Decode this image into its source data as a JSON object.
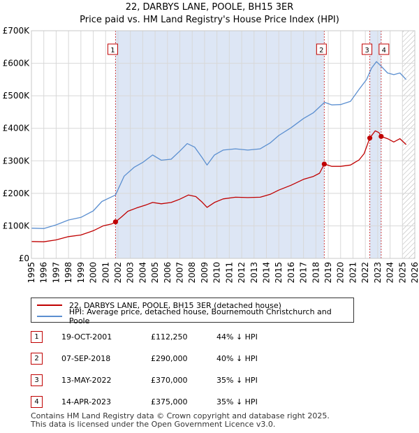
{
  "title_line1": "22, DARBYS LANE, POOLE, BH15 3ER",
  "title_line2": "Price paid vs. HM Land Registry's House Price Index (HPI)",
  "colors": {
    "property": "#c00000",
    "hpi": "#5b8fd0",
    "shade": "#dde6f5",
    "marker_line": "#d04040"
  },
  "chart_data": {
    "type": "line",
    "title": "22, DARBYS LANE, POOLE, BH15 3ER — Price paid vs. HM Land Registry's House Price Index (HPI)",
    "xlabel": "",
    "ylabel": "",
    "xlim": [
      1995,
      2026
    ],
    "ylim": [
      0,
      700000
    ],
    "x_ticks": [
      "1995",
      "1996",
      "1997",
      "1998",
      "1999",
      "2000",
      "2001",
      "2002",
      "2003",
      "2004",
      "2005",
      "2006",
      "2007",
      "2008",
      "2009",
      "2010",
      "2011",
      "2012",
      "2013",
      "2014",
      "2015",
      "2016",
      "2017",
      "2018",
      "2019",
      "2020",
      "2021",
      "2022",
      "2023",
      "2024",
      "2025",
      "2026"
    ],
    "y_ticks": [
      {
        "value": 0,
        "label": "£0"
      },
      {
        "value": 100000,
        "label": "£100K"
      },
      {
        "value": 200000,
        "label": "£200K"
      },
      {
        "value": 300000,
        "label": "£300K"
      },
      {
        "value": 400000,
        "label": "£400K"
      },
      {
        "value": 500000,
        "label": "£500K"
      },
      {
        "value": 600000,
        "label": "£600K"
      },
      {
        "value": 700000,
        "label": "£700K"
      }
    ],
    "grid": true,
    "series": [
      {
        "name": "22, DARBYS LANE, POOLE, BH15 3ER (detached house)",
        "points": [
          [
            1995.0,
            52000
          ],
          [
            1996.0,
            51000
          ],
          [
            1997.0,
            57000
          ],
          [
            1998.0,
            67000
          ],
          [
            1999.0,
            72000
          ],
          [
            2000.0,
            85000
          ],
          [
            2000.8,
            100000
          ],
          [
            2001.5,
            106000
          ],
          [
            2001.8,
            112250
          ],
          [
            2002.3,
            128000
          ],
          [
            2002.8,
            145000
          ],
          [
            2003.5,
            155000
          ],
          [
            2004.3,
            165000
          ],
          [
            2004.8,
            172000
          ],
          [
            2005.5,
            168000
          ],
          [
            2006.3,
            172000
          ],
          [
            2007.0,
            182000
          ],
          [
            2007.7,
            195000
          ],
          [
            2008.3,
            190000
          ],
          [
            2008.8,
            173000
          ],
          [
            2009.2,
            157000
          ],
          [
            2009.8,
            172000
          ],
          [
            2010.5,
            183000
          ],
          [
            2011.5,
            188000
          ],
          [
            2012.5,
            187000
          ],
          [
            2013.5,
            188000
          ],
          [
            2014.3,
            197000
          ],
          [
            2015.0,
            210000
          ],
          [
            2016.0,
            225000
          ],
          [
            2017.0,
            243000
          ],
          [
            2017.8,
            252000
          ],
          [
            2018.3,
            262000
          ],
          [
            2018.68,
            290000
          ],
          [
            2019.3,
            283000
          ],
          [
            2020.0,
            283000
          ],
          [
            2020.8,
            287000
          ],
          [
            2021.5,
            303000
          ],
          [
            2021.9,
            322000
          ],
          [
            2022.36,
            370000
          ],
          [
            2022.8,
            392000
          ],
          [
            2023.1,
            387000
          ],
          [
            2023.28,
            375000
          ],
          [
            2023.8,
            368000
          ],
          [
            2024.3,
            358000
          ],
          [
            2024.8,
            368000
          ],
          [
            2025.3,
            350000
          ]
        ]
      },
      {
        "name": "HPI: Average price, detached house, Bournemouth Christchurch and Poole",
        "points": [
          [
            1995.0,
            93000
          ],
          [
            1996.0,
            92000
          ],
          [
            1997.0,
            103000
          ],
          [
            1998.0,
            118000
          ],
          [
            1999.0,
            126000
          ],
          [
            2000.0,
            146000
          ],
          [
            2000.7,
            175000
          ],
          [
            2001.8,
            195000
          ],
          [
            2002.5,
            253000
          ],
          [
            2003.3,
            280000
          ],
          [
            2004.0,
            295000
          ],
          [
            2004.8,
            318000
          ],
          [
            2005.5,
            302000
          ],
          [
            2006.3,
            305000
          ],
          [
            2007.0,
            330000
          ],
          [
            2007.6,
            353000
          ],
          [
            2008.2,
            342000
          ],
          [
            2008.8,
            310000
          ],
          [
            2009.2,
            287000
          ],
          [
            2009.8,
            318000
          ],
          [
            2010.5,
            333000
          ],
          [
            2011.5,
            337000
          ],
          [
            2012.5,
            333000
          ],
          [
            2013.5,
            337000
          ],
          [
            2014.3,
            355000
          ],
          [
            2015.0,
            378000
          ],
          [
            2016.0,
            402000
          ],
          [
            2017.0,
            430000
          ],
          [
            2017.8,
            448000
          ],
          [
            2018.7,
            480000
          ],
          [
            2019.3,
            472000
          ],
          [
            2020.0,
            473000
          ],
          [
            2020.8,
            483000
          ],
          [
            2021.5,
            520000
          ],
          [
            2022.1,
            550000
          ],
          [
            2022.5,
            585000
          ],
          [
            2022.9,
            605000
          ],
          [
            2023.3,
            590000
          ],
          [
            2023.8,
            570000
          ],
          [
            2024.3,
            565000
          ],
          [
            2024.8,
            570000
          ],
          [
            2025.3,
            550000
          ]
        ]
      }
    ],
    "shaded_regions": [
      [
        2001.8,
        2018.68
      ],
      [
        2022.36,
        2023.28
      ]
    ],
    "hatched_region": [
      2025.0,
      2026.0
    ],
    "sales": [
      {
        "label": "1",
        "x": 2001.8,
        "price": 112250
      },
      {
        "label": "2",
        "x": 2018.68,
        "price": 290000
      },
      {
        "label": "3",
        "x": 2022.36,
        "price": 370000
      },
      {
        "label": "4",
        "x": 2023.28,
        "price": 375000
      }
    ]
  },
  "legend": {
    "property": "22, DARBYS LANE, POOLE, BH15 3ER (detached house)",
    "hpi": "HPI: Average price, detached house, Bournemouth Christchurch and Poole"
  },
  "transactions": [
    {
      "num": "1",
      "date": "19-OCT-2001",
      "price": "£112,250",
      "hpi": "44% ↓ HPI"
    },
    {
      "num": "2",
      "date": "07-SEP-2018",
      "price": "£290,000",
      "hpi": "40% ↓ HPI"
    },
    {
      "num": "3",
      "date": "13-MAY-2022",
      "price": "£370,000",
      "hpi": "35% ↓ HPI"
    },
    {
      "num": "4",
      "date": "14-APR-2023",
      "price": "£375,000",
      "hpi": "35% ↓ HPI"
    }
  ],
  "footer": {
    "line1": "Contains HM Land Registry data © Crown copyright and database right 2025.",
    "line2": "This data is licensed under the Open Government Licence v3.0."
  }
}
